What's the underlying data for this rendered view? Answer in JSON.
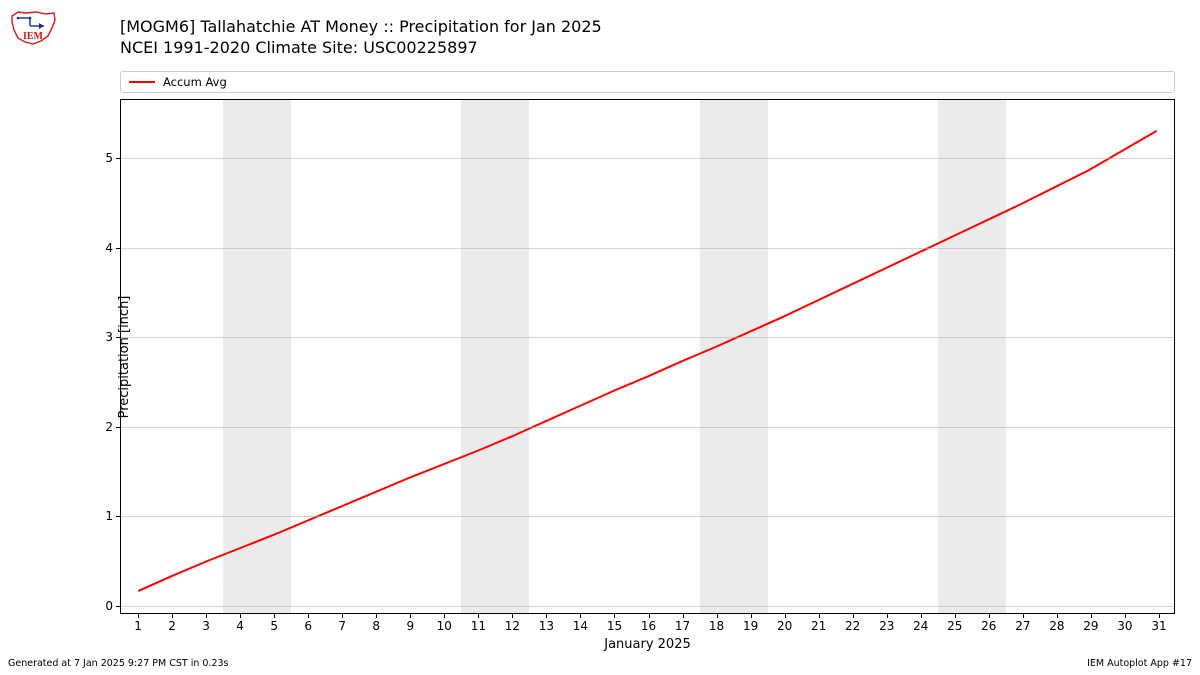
{
  "logo": {
    "text": "IEM",
    "outline_color": "#d01b1b",
    "accent_color": "#15317e"
  },
  "title": {
    "line1": "[MOGM6] Tallahatchie  AT Money :: Precipitation for Jan 2025",
    "line2": "NCEI 1991-2020 Climate Site: USC00225897",
    "fontsize": 16
  },
  "legend": {
    "items": [
      {
        "label": "Accum Avg",
        "color": "#ff0000"
      }
    ],
    "fontsize": 11.5,
    "border_color": "#cccccc"
  },
  "chart": {
    "type": "line",
    "plot_bg": "#ffffff",
    "weekend_band_color": "#ebebeb",
    "grid_color": "#b0b0b0",
    "border_color": "#000000",
    "xlabel": "January 2025",
    "ylabel": "Precipitation [inch]",
    "label_fontsize": 13,
    "tick_fontsize": 12,
    "xlim": [
      0.5,
      31.5
    ],
    "ylim": [
      -0.1,
      5.65
    ],
    "xticks": [
      1,
      2,
      3,
      4,
      5,
      6,
      7,
      8,
      9,
      10,
      11,
      12,
      13,
      14,
      15,
      16,
      17,
      18,
      19,
      20,
      21,
      22,
      23,
      24,
      25,
      26,
      27,
      28,
      29,
      30,
      31
    ],
    "yticks": [
      0,
      1,
      2,
      3,
      4,
      5
    ],
    "weekend_bands": [
      [
        3.5,
        5.5
      ],
      [
        10.5,
        12.5
      ],
      [
        17.5,
        19.5
      ],
      [
        24.5,
        26.5
      ]
    ],
    "series": [
      {
        "name": "Accum Avg",
        "color": "#ff0000",
        "line_width": 2,
        "x": [
          1,
          2,
          3,
          4,
          5,
          6,
          7,
          8,
          9,
          10,
          11,
          12,
          13,
          14,
          15,
          16,
          17,
          18,
          19,
          20,
          21,
          22,
          23,
          24,
          25,
          26,
          27,
          28,
          29,
          30,
          31
        ],
        "y": [
          0.15,
          0.32,
          0.48,
          0.63,
          0.78,
          0.94,
          1.1,
          1.26,
          1.42,
          1.57,
          1.72,
          1.88,
          2.05,
          2.22,
          2.39,
          2.55,
          2.72,
          2.88,
          3.05,
          3.22,
          3.4,
          3.58,
          3.76,
          3.94,
          4.12,
          4.3,
          4.48,
          4.67,
          4.86,
          5.08,
          5.3
        ]
      }
    ]
  },
  "footer": {
    "left": "Generated at 7 Jan 2025 9:27 PM CST in 0.23s",
    "right": "IEM Autoplot App #17",
    "fontsize": 9.5
  }
}
